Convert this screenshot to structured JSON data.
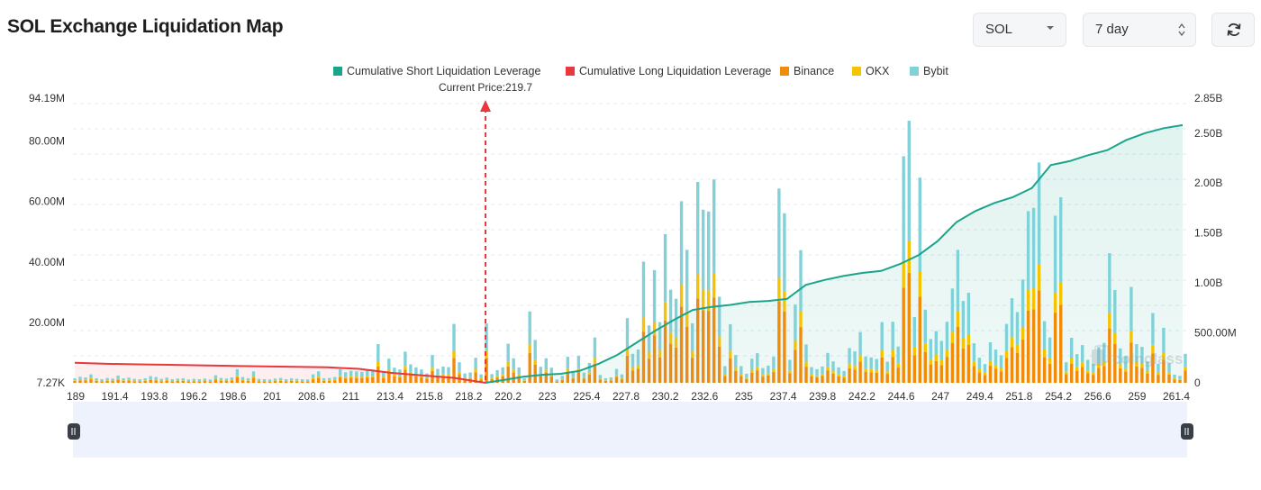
{
  "header": {
    "title": "SOL Exchange Liquidation Map",
    "symbol_value": "SOL",
    "period_value": "7 day"
  },
  "icons": {
    "symbol_dropdown": "caret-down-icon",
    "period_dropdown": "up-down-chevron-icon",
    "refresh": "refresh-icon"
  },
  "colors": {
    "short": "#1aa58b",
    "long": "#e8373d",
    "binance": "#f08c0c",
    "okx": "#f5c300",
    "bybit": "#80d2d8"
  },
  "chart_data": {
    "type": "bar",
    "title": "",
    "current_price_label": "Current Price:219.7",
    "current_price": 219.7,
    "legend": [
      {
        "key": "short",
        "label": "Cumulative Short Liquidation Leverage",
        "color": "#1aa58b"
      },
      {
        "key": "long",
        "label": "Cumulative Long Liquidation Leverage",
        "color": "#e8373d"
      },
      {
        "key": "binance",
        "label": "Binance",
        "color": "#f08c0c"
      },
      {
        "key": "okx",
        "label": "OKX",
        "color": "#f5c300"
      },
      {
        "key": "bybit",
        "label": "Bybit",
        "color": "#80d2d8"
      }
    ],
    "legend_position": "top-center",
    "x_ticks": [
      "189",
      "191.4",
      "193.8",
      "196.2",
      "198.6",
      "201",
      "208.6",
      "211",
      "213.4",
      "215.8",
      "218.2",
      "220.2",
      "223",
      "225.4",
      "227.8",
      "230.2",
      "232.6",
      "235",
      "237.4",
      "239.8",
      "242.2",
      "244.6",
      "247",
      "249.4",
      "251.8",
      "254.2",
      "256.6",
      "259",
      "261.4"
    ],
    "y_left_ticks": [
      "7.27K",
      "20.00M",
      "40.00M",
      "60.00M",
      "80.00M",
      "94.19M"
    ],
    "y_left_values": [
      0.00727,
      20,
      40,
      60,
      80,
      94.19
    ],
    "y_left_range": [
      0,
      94.19
    ],
    "y_right_ticks": [
      "0",
      "500.00M",
      "1.00B",
      "1.50B",
      "2.00B",
      "2.50B",
      "2.85B"
    ],
    "y_right_values": [
      0,
      0.5,
      1.0,
      1.5,
      2.0,
      2.5,
      2.85
    ],
    "y_right_range": [
      0,
      2.85
    ],
    "grid": true,
    "bar_totals_M": [
      1.5,
      2,
      1.8,
      2.8,
      1.5,
      1.2,
      1.6,
      1.4,
      2.4,
      1.5,
      1.7,
      1.3,
      1.2,
      1.5,
      2.2,
      1.9,
      1.3,
      1.7,
      1.2,
      1.4,
      1.5,
      1.1,
      1.3,
      1.2,
      1.4,
      1.1,
      2.5,
      1.6,
      1.4,
      1.8,
      4.5,
      1.9,
      1.5,
      3.8,
      1.3,
      1.2,
      1.1,
      1.4,
      1.6,
      1.2,
      1.5,
      1.3,
      1.2,
      1.1,
      2.8,
      3.8,
      1.5,
      1.6,
      1.9,
      4.5,
      3.5,
      4,
      3.8,
      3.6,
      4.2,
      4.4,
      12.8,
      3.8,
      8,
      5,
      4.4,
      10.3,
      6.1,
      5.1,
      4.4,
      3.1,
      9.2,
      4.6,
      5.4,
      5.2,
      19.5,
      6.8,
      3.1,
      3.4,
      8.3,
      2.8,
      19.6,
      2.9,
      4.2,
      5.1,
      12.9,
      8.1,
      5.1,
      1.5,
      23.6,
      14.2,
      5.3,
      8.1,
      5,
      1.1,
      2.3,
      8.6,
      3.4,
      8.9,
      3.4,
      6.6,
      15,
      2.6,
      1.5,
      1.8,
      4.6,
      2.8,
      21.4,
      9.6,
      11,
      40.1,
      19,
      37.3,
      20.1,
      49.2,
      30.8,
      27.8,
      60.1,
      44,
      19.7,
      66.5,
      57.3,
      56.7,
      67.3,
      28.5,
      5.5,
      19.4,
      9.2,
      5.5,
      3,
      8,
      9.8,
      4.9,
      5.7,
      8.6,
      64.3,
      56.1,
      7.6,
      25.9,
      43.9,
      12.7,
      5.2,
      4.5,
      5.4,
      9.9,
      7.1,
      5.1,
      3.9,
      11.5,
      10.4,
      16.8,
      8.7,
      8.4,
      7.9,
      20.1,
      7,
      20.2,
      12,
      75,
      86.7,
      21.8,
      67.9,
      24.2,
      14.5,
      17.1,
      13.9,
      20.2,
      31.2,
      44,
      27.1,
      29.8,
      13.1,
      8.3,
      6.2,
      13.4,
      11,
      9.1,
      19.5,
      28,
      23.4,
      34.2,
      56.8,
      57.9,
      72.9,
      20.4,
      15,
      55.3,
      61.4,
      6.8,
      14.9,
      9.5,
      12.5,
      7.6,
      6.3,
      11.8,
      13.2,
      42.9,
      30.7,
      11.4,
      8.8,
      31.7,
      12.8,
      11.9,
      7.1,
      23.1,
      6.3,
      18.2,
      6.5,
      2.7,
      2.3,
      9.6
    ],
    "cumulative_short_B": [
      0,
      0.03,
      0.06,
      0.08,
      0.09,
      0.12,
      0.19,
      0.28,
      0.4,
      0.52,
      0.63,
      0.73,
      0.76,
      0.78,
      0.81,
      0.82,
      0.84,
      0.98,
      1.03,
      1.07,
      1.1,
      1.12,
      1.19,
      1.28,
      1.42,
      1.61,
      1.72,
      1.8,
      1.86,
      1.95,
      2.18,
      2.22,
      2.28,
      2.33,
      2.43,
      2.5,
      2.55,
      2.58
    ],
    "cumulative_long_B": [
      0.2,
      0.19,
      0.185,
      0.18,
      0.175,
      0.17,
      0.165,
      0.16,
      0.155,
      0.14,
      0.1,
      0.075,
      0.05,
      0
    ]
  }
}
